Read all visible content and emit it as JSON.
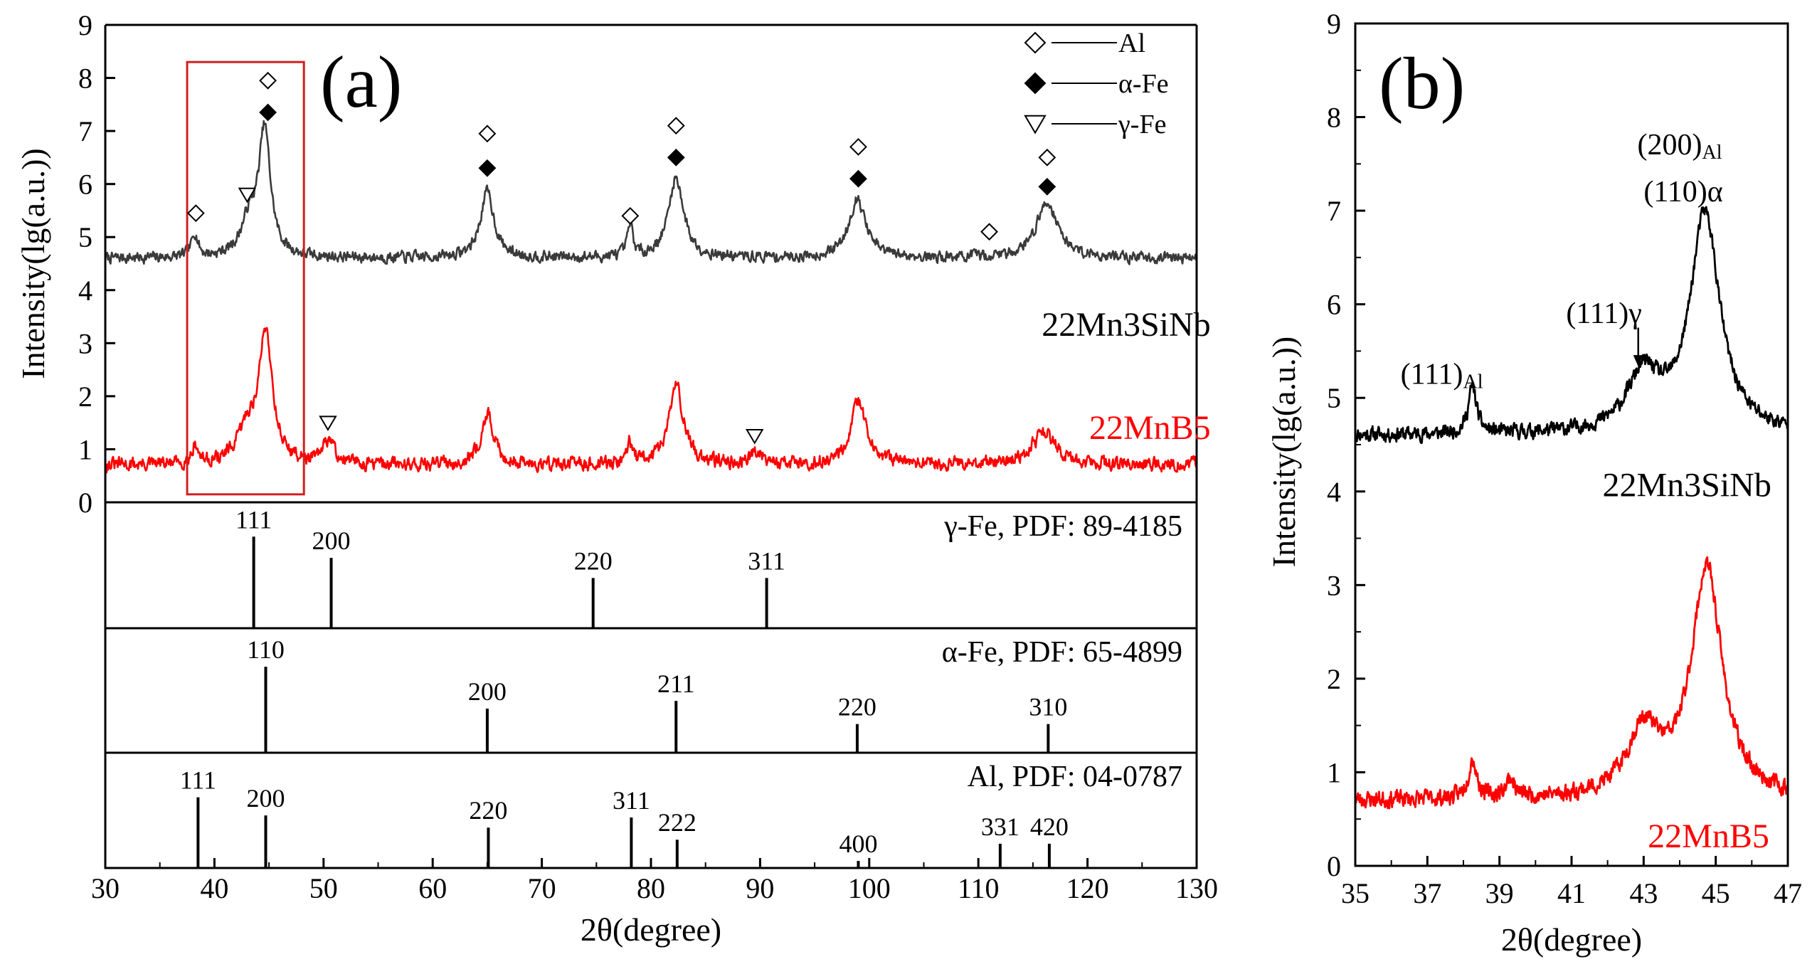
{
  "colors": {
    "axis": "#000000",
    "upper_trace_a": "#3a3a3a",
    "upper_trace_b": "#000000",
    "lower_trace": "#ff0000",
    "highlight_box": "#d02020"
  },
  "legend": {
    "items": [
      {
        "marker": "diamond-open-icon",
        "label": "Al"
      },
      {
        "marker": "diamond-filled-icon",
        "label": "α-Fe"
      },
      {
        "marker": "triangle-open-icon",
        "label": "γ-Fe"
      }
    ]
  },
  "chart_data": [
    {
      "panel": "(a)",
      "type": "line",
      "xlabel": "2θ(degree)",
      "ylabel": "Intensity(lg(a.u.))",
      "xlim": [
        30,
        130
      ],
      "ylim": [
        0,
        9
      ],
      "xticks": [
        30,
        40,
        50,
        60,
        70,
        80,
        90,
        100,
        110,
        120,
        130
      ],
      "yticks": [
        0,
        1,
        2,
        3,
        4,
        5,
        6,
        7,
        8,
        9
      ],
      "highlight_box": {
        "x": [
          37.5,
          48.2
        ],
        "y": [
          0.15,
          8.3
        ]
      },
      "series": [
        {
          "name": "22Mn3SiNb",
          "baseline": 4.6,
          "noise": 0.16,
          "seed": 7,
          "peaks": [
            {
              "x": 38.2,
              "h": 0.45,
              "w": 0.35
            },
            {
              "x": 43.2,
              "h": 0.65,
              "w": 0.9
            },
            {
              "x": 44.6,
              "h": 2.35,
              "w": 0.65
            },
            {
              "x": 65.0,
              "h": 1.25,
              "w": 0.75
            },
            {
              "x": 78.1,
              "h": 0.6,
              "w": 0.3
            },
            {
              "x": 82.3,
              "h": 1.5,
              "w": 0.85
            },
            {
              "x": 98.9,
              "h": 1.1,
              "w": 0.95
            },
            {
              "x": 116.3,
              "h": 1.05,
              "w": 1.2
            }
          ]
        },
        {
          "name": "22MnB5",
          "baseline": 0.7,
          "noise": 0.2,
          "seed": 31,
          "peaks": [
            {
              "x": 38.2,
              "h": 0.35,
              "w": 0.35
            },
            {
              "x": 43.0,
              "h": 0.6,
              "w": 1.0
            },
            {
              "x": 44.7,
              "h": 2.45,
              "w": 0.75
            },
            {
              "x": 50.5,
              "h": 0.45,
              "w": 0.6
            },
            {
              "x": 65.0,
              "h": 0.95,
              "w": 0.7
            },
            {
              "x": 78.0,
              "h": 0.4,
              "w": 0.35
            },
            {
              "x": 82.3,
              "h": 1.5,
              "w": 0.8
            },
            {
              "x": 89.7,
              "h": 0.25,
              "w": 0.8
            },
            {
              "x": 99.0,
              "h": 1.15,
              "w": 0.9
            },
            {
              "x": 116.0,
              "h": 0.6,
              "w": 1.4
            }
          ]
        }
      ],
      "sample_labels": [
        {
          "text": "22Mn3SiNb",
          "x": 129,
          "y": 4.0
        },
        {
          "text": "22MnB5",
          "x": 129,
          "y": 2.05
        }
      ],
      "peak_markers": [
        {
          "type": "Al",
          "x": 38.3,
          "y": 5.45
        },
        {
          "type": "γ-Fe",
          "x": 43.0,
          "y": 5.8
        },
        {
          "type": "Al",
          "x": 44.9,
          "y": 7.95
        },
        {
          "type": "α-Fe",
          "x": 44.9,
          "y": 7.35
        },
        {
          "type": "Al",
          "x": 65.0,
          "y": 6.95
        },
        {
          "type": "α-Fe",
          "x": 65.0,
          "y": 6.3
        },
        {
          "type": "Al",
          "x": 78.1,
          "y": 5.4
        },
        {
          "type": "Al",
          "x": 82.3,
          "y": 7.1
        },
        {
          "type": "α-Fe",
          "x": 82.3,
          "y": 6.5
        },
        {
          "type": "Al",
          "x": 99.0,
          "y": 6.7
        },
        {
          "type": "α-Fe",
          "x": 99.0,
          "y": 6.1
        },
        {
          "type": "Al",
          "x": 111.0,
          "y": 5.1
        },
        {
          "type": "Al",
          "x": 116.3,
          "y": 6.5
        },
        {
          "type": "α-Fe",
          "x": 116.3,
          "y": 5.95
        },
        {
          "type": "γ-Fe",
          "x": 50.4,
          "y": 1.5
        },
        {
          "type": "γ-Fe",
          "x": 89.5,
          "y": 1.25
        }
      ],
      "reference_patterns": [
        {
          "label": "γ-Fe, PDF: 89-4185",
          "sticks": [
            {
              "x": 43.6,
              "hkl": "111",
              "rel": 0.82
            },
            {
              "x": 50.7,
              "hkl": "200",
              "rel": 0.63
            },
            {
              "x": 74.7,
              "hkl": "220",
              "rel": 0.45
            },
            {
              "x": 90.6,
              "hkl": "311",
              "rel": 0.45
            }
          ]
        },
        {
          "label": "α-Fe, PDF: 65-4899",
          "sticks": [
            {
              "x": 44.7,
              "hkl": "110",
              "rel": 0.78
            },
            {
              "x": 65.0,
              "hkl": "200",
              "rel": 0.4
            },
            {
              "x": 82.3,
              "hkl": "211",
              "rel": 0.47
            },
            {
              "x": 98.9,
              "hkl": "220",
              "rel": 0.26
            },
            {
              "x": 116.4,
              "hkl": "310",
              "rel": 0.26
            }
          ]
        },
        {
          "label": "Al, PDF: 04-0787",
          "sticks": [
            {
              "x": 38.5,
              "hkl": "111",
              "rel": 0.7
            },
            {
              "x": 44.7,
              "hkl": "200",
              "rel": 0.52
            },
            {
              "x": 65.1,
              "hkl": "220",
              "rel": 0.4
            },
            {
              "x": 78.2,
              "hkl": "311",
              "rel": 0.5
            },
            {
              "x": 82.4,
              "hkl": "222",
              "rel": 0.28
            },
            {
              "x": 99.0,
              "hkl": "400",
              "rel": 0.07
            },
            {
              "x": 112.0,
              "hkl": "331",
              "rel": 0.24
            },
            {
              "x": 116.5,
              "hkl": "420",
              "rel": 0.24
            }
          ]
        }
      ]
    },
    {
      "panel": "(b)",
      "type": "line",
      "xlabel": "2θ(degree)",
      "ylabel": "Intensity(lg(a.u.))",
      "xlim": [
        35,
        47
      ],
      "ylim": [
        0,
        9
      ],
      "xticks": [
        35,
        37,
        39,
        41,
        43,
        45,
        47
      ],
      "yticks": [
        0,
        1,
        2,
        3,
        4,
        5,
        6,
        7,
        8,
        9
      ],
      "series": [
        {
          "name": "22Mn3SiNb",
          "baseline": 4.6,
          "noise": 0.12,
          "seed": 11,
          "peaks": [
            {
              "x": 38.25,
              "h": 0.5,
              "w": 0.14
            },
            {
              "x": 43.0,
              "h": 0.6,
              "w": 0.55
            },
            {
              "x": 44.7,
              "h": 2.35,
              "w": 0.5
            }
          ]
        },
        {
          "name": "22MnB5",
          "baseline": 0.7,
          "noise": 0.14,
          "seed": 23,
          "peaks": [
            {
              "x": 38.25,
              "h": 0.42,
              "w": 0.14
            },
            {
              "x": 39.3,
              "h": 0.2,
              "w": 0.15
            },
            {
              "x": 43.0,
              "h": 0.7,
              "w": 0.55
            },
            {
              "x": 44.75,
              "h": 2.45,
              "w": 0.52
            }
          ]
        }
      ],
      "sample_labels": [
        {
          "text": "22Mn3SiNb",
          "x": 44.2,
          "y": 4.1
        },
        {
          "text": "22MnB5",
          "x": 44.8,
          "y": 0.35
        }
      ],
      "annotations": [
        {
          "text": "(111)",
          "sub": "Al",
          "x": 37.4,
          "y": 5.15
        },
        {
          "text": "(111)γ",
          "sub": "",
          "x": 41.9,
          "y": 5.8
        },
        {
          "text": "(200)",
          "sub": "Al",
          "x": 44.0,
          "y": 7.6
        },
        {
          "text": "(110)α",
          "sub": "",
          "x": 44.1,
          "y": 7.1
        }
      ],
      "arrow": {
        "x": 42.85,
        "y_from": 5.75,
        "y_to": 5.35
      }
    }
  ]
}
